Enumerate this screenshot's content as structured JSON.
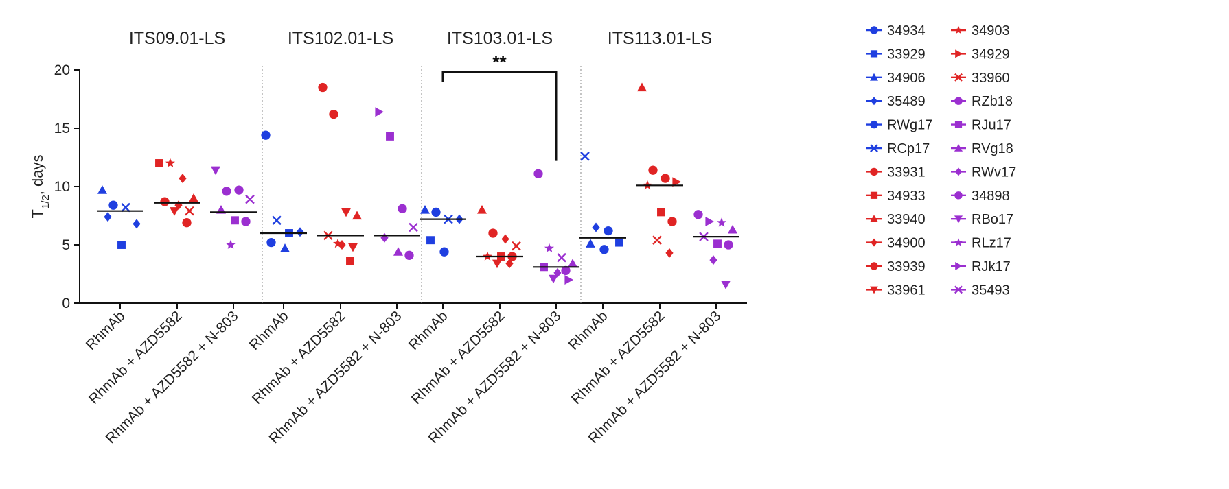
{
  "chart_data": {
    "type": "scatter",
    "ylabel": "T",
    "ylabel_sub": "1/2",
    "ylabel_suffix": ", days",
    "ylim": [
      0,
      20
    ],
    "yticks": [
      "0",
      "5",
      "10",
      "15",
      "20"
    ],
    "groups": [
      "RhmAb",
      "RhmAb + AZD5582",
      "RhmAb + AZD5582 + N-803"
    ],
    "group_colors": [
      "#1f3fe0",
      "#e02424",
      "#9b2fd0"
    ],
    "panels": [
      {
        "title": "ITS09.01-LS",
        "medians": [
          7.9,
          8.6,
          7.8
        ],
        "points": [
          [
            {
              "marker": "triangle",
              "y": 9.7
            },
            {
              "marker": "circle",
              "y": 8.4
            },
            {
              "marker": "x",
              "y": 8.2
            },
            {
              "marker": "diamond",
              "y": 6.8
            },
            {
              "marker": "diamond",
              "y": 7.4
            },
            {
              "marker": "square",
              "y": 5.0
            }
          ],
          [
            {
              "marker": "square",
              "y": 12.0
            },
            {
              "marker": "star",
              "y": 12.0
            },
            {
              "marker": "diamond",
              "y": 10.7
            },
            {
              "marker": "triangle",
              "y": 9.0
            },
            {
              "marker": "circle",
              "y": 8.7
            },
            {
              "marker": "diamond",
              "y": 8.4
            },
            {
              "marker": "x",
              "y": 7.9
            },
            {
              "marker": "triangle-down",
              "y": 7.9
            },
            {
              "marker": "circle",
              "y": 6.9
            }
          ],
          [
            {
              "marker": "triangle-down",
              "y": 11.4
            },
            {
              "marker": "circle",
              "y": 9.6
            },
            {
              "marker": "circle",
              "y": 9.7
            },
            {
              "marker": "x",
              "y": 8.9
            },
            {
              "marker": "triangle",
              "y": 8.0
            },
            {
              "marker": "square",
              "y": 7.1
            },
            {
              "marker": "circle",
              "y": 7.0
            },
            {
              "marker": "star",
              "y": 5.0
            }
          ]
        ]
      },
      {
        "title": "ITS102.01-LS",
        "medians": [
          6.0,
          5.8,
          5.8
        ],
        "points": [
          [
            {
              "marker": "circle",
              "y": 14.4
            },
            {
              "marker": "x",
              "y": 7.1
            },
            {
              "marker": "square",
              "y": 6.0
            },
            {
              "marker": "diamond",
              "y": 6.1
            },
            {
              "marker": "circle",
              "y": 5.2
            },
            {
              "marker": "triangle",
              "y": 4.7
            }
          ],
          [
            {
              "marker": "circle",
              "y": 18.5
            },
            {
              "marker": "circle",
              "y": 16.2
            },
            {
              "marker": "triangle-down",
              "y": 7.8
            },
            {
              "marker": "triangle",
              "y": 7.5
            },
            {
              "marker": "x",
              "y": 5.8
            },
            {
              "marker": "diamond",
              "y": 5.0
            },
            {
              "marker": "triangle-down",
              "y": 4.8
            },
            {
              "marker": "star",
              "y": 5.1
            },
            {
              "marker": "square",
              "y": 3.6
            }
          ],
          [
            {
              "marker": "tri-right",
              "y": 16.4
            },
            {
              "marker": "square",
              "y": 14.3
            },
            {
              "marker": "circle",
              "y": 8.1
            },
            {
              "marker": "x",
              "y": 6.5
            },
            {
              "marker": "diamond",
              "y": 5.6
            },
            {
              "marker": "triangle",
              "y": 4.4
            },
            {
              "marker": "circle",
              "y": 4.1
            }
          ]
        ]
      },
      {
        "title": "ITS103.01-LS",
        "medians": [
          7.2,
          4.0,
          3.1
        ],
        "points": [
          [
            {
              "marker": "triangle",
              "y": 8.0
            },
            {
              "marker": "circle",
              "y": 7.8
            },
            {
              "marker": "x",
              "y": 7.2
            },
            {
              "marker": "diamond",
              "y": 7.2
            },
            {
              "marker": "square",
              "y": 5.4
            },
            {
              "marker": "circle",
              "y": 4.4
            }
          ],
          [
            {
              "marker": "triangle",
              "y": 8.0
            },
            {
              "marker": "circle",
              "y": 6.0
            },
            {
              "marker": "diamond",
              "y": 5.5
            },
            {
              "marker": "x",
              "y": 4.9
            },
            {
              "marker": "star",
              "y": 4.0
            },
            {
              "marker": "square",
              "y": 4.0
            },
            {
              "marker": "circle",
              "y": 4.0
            },
            {
              "marker": "triangle-down",
              "y": 3.4
            },
            {
              "marker": "diamond",
              "y": 3.4
            }
          ],
          [
            {
              "marker": "circle",
              "y": 11.1
            },
            {
              "marker": "star",
              "y": 4.7
            },
            {
              "marker": "x",
              "y": 3.9
            },
            {
              "marker": "triangle",
              "y": 3.4
            },
            {
              "marker": "square",
              "y": 3.1
            },
            {
              "marker": "diamond",
              "y": 2.6
            },
            {
              "marker": "tri-right",
              "y": 2.0
            },
            {
              "marker": "triangle-down",
              "y": 2.1
            },
            {
              "marker": "circle",
              "y": 2.8
            }
          ]
        ]
      },
      {
        "title": "ITS113.01-LS",
        "medians": [
          5.6,
          10.1,
          5.7
        ],
        "points": [
          [
            {
              "marker": "x",
              "y": 12.6
            },
            {
              "marker": "diamond",
              "y": 6.5
            },
            {
              "marker": "circle",
              "y": 6.2
            },
            {
              "marker": "square",
              "y": 5.2
            },
            {
              "marker": "triangle",
              "y": 5.1
            },
            {
              "marker": "circle",
              "y": 4.6
            }
          ],
          [
            {
              "marker": "triangle",
              "y": 18.5
            },
            {
              "marker": "circle",
              "y": 11.4
            },
            {
              "marker": "circle",
              "y": 10.7
            },
            {
              "marker": "tri-right",
              "y": 10.4
            },
            {
              "marker": "star",
              "y": 10.1
            },
            {
              "marker": "square",
              "y": 7.8
            },
            {
              "marker": "circle",
              "y": 7.0
            },
            {
              "marker": "x",
              "y": 5.4
            },
            {
              "marker": "diamond",
              "y": 4.3
            }
          ],
          [
            {
              "marker": "circle",
              "y": 7.6
            },
            {
              "marker": "tri-right",
              "y": 7.0
            },
            {
              "marker": "star",
              "y": 6.9
            },
            {
              "marker": "triangle",
              "y": 6.3
            },
            {
              "marker": "x",
              "y": 5.7
            },
            {
              "marker": "square",
              "y": 5.1
            },
            {
              "marker": "circle",
              "y": 5.0
            },
            {
              "marker": "diamond",
              "y": 3.7
            },
            {
              "marker": "triangle-down",
              "y": 1.6
            }
          ]
        ]
      }
    ],
    "significance": {
      "panel": 2,
      "from_group": 0,
      "to_group": 2,
      "label": "**",
      "y_level": 19.8,
      "left_end": 19.0,
      "right_end": 12.2
    },
    "legend": [
      {
        "label": "34934",
        "color": "#1f3fe0",
        "marker": "circle"
      },
      {
        "label": "33929",
        "color": "#1f3fe0",
        "marker": "square"
      },
      {
        "label": "34906",
        "color": "#1f3fe0",
        "marker": "triangle"
      },
      {
        "label": "35489",
        "color": "#1f3fe0",
        "marker": "diamond"
      },
      {
        "label": "RWg17",
        "color": "#1f3fe0",
        "marker": "circle"
      },
      {
        "label": "RCp17",
        "color": "#1f3fe0",
        "marker": "x"
      },
      {
        "label": "33931",
        "color": "#e02424",
        "marker": "circle"
      },
      {
        "label": "34933",
        "color": "#e02424",
        "marker": "square"
      },
      {
        "label": "33940",
        "color": "#e02424",
        "marker": "triangle"
      },
      {
        "label": "34900",
        "color": "#e02424",
        "marker": "diamond"
      },
      {
        "label": "33939",
        "color": "#e02424",
        "marker": "circle"
      },
      {
        "label": "33961",
        "color": "#e02424",
        "marker": "triangle-down"
      },
      {
        "label": "34903",
        "color": "#e02424",
        "marker": "star"
      },
      {
        "label": "34929",
        "color": "#e02424",
        "marker": "tri-right"
      },
      {
        "label": "33960",
        "color": "#e02424",
        "marker": "x"
      },
      {
        "label": "RZb18",
        "color": "#9b2fd0",
        "marker": "circle"
      },
      {
        "label": "RJu17",
        "color": "#9b2fd0",
        "marker": "square"
      },
      {
        "label": "RVg18",
        "color": "#9b2fd0",
        "marker": "triangle"
      },
      {
        "label": "RWv17",
        "color": "#9b2fd0",
        "marker": "diamond"
      },
      {
        "label": "34898",
        "color": "#9b2fd0",
        "marker": "circle"
      },
      {
        "label": "RBo17",
        "color": "#9b2fd0",
        "marker": "triangle-down"
      },
      {
        "label": "RLz17",
        "color": "#9b2fd0",
        "marker": "star"
      },
      {
        "label": "RJk17",
        "color": "#9b2fd0",
        "marker": "tri-right"
      },
      {
        "label": "35493",
        "color": "#9b2fd0",
        "marker": "x"
      }
    ]
  }
}
